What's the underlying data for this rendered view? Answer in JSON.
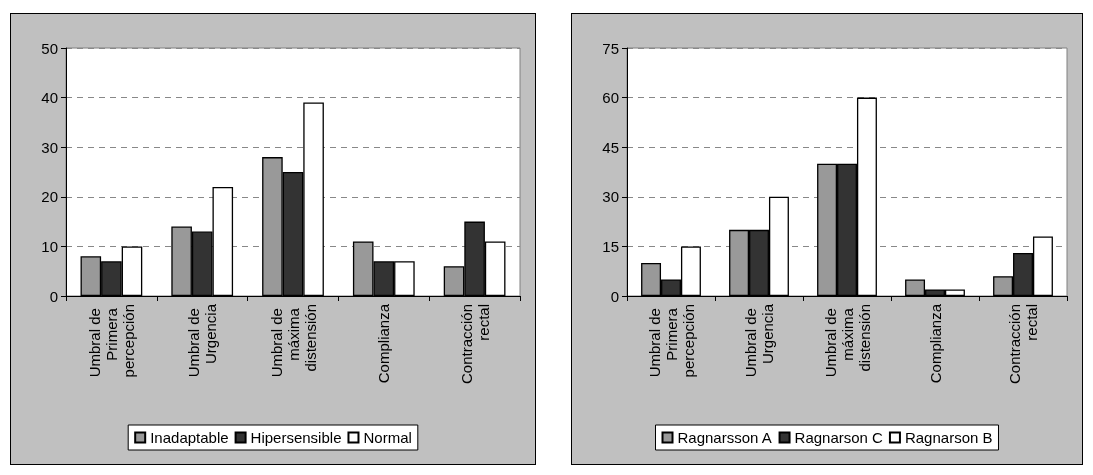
{
  "chart_data": [
    {
      "type": "bar",
      "categories": [
        "Umbral de Primera percepción",
        "Umbral de Urgencia",
        "Umbral de máxima distensión",
        "Complianza",
        "Contracción rectal"
      ],
      "series": [
        {
          "name": "Inadaptable",
          "color": "#999999",
          "values": [
            8,
            14,
            28,
            11,
            6
          ]
        },
        {
          "name": "Hipersensible",
          "color": "#333333",
          "values": [
            7,
            13,
            25,
            7,
            15
          ]
        },
        {
          "name": "Normal",
          "color": "#ffffff",
          "values": [
            10,
            22,
            39,
            7,
            11
          ]
        }
      ],
      "ylim": [
        0,
        50
      ],
      "yticks": [
        0,
        10,
        20,
        30,
        40,
        50
      ],
      "grid": "y",
      "legend": "bottom"
    },
    {
      "type": "bar",
      "categories": [
        "Umbral de Primera percepción",
        "Umbral de Urgencia",
        "Umbral de máxima distensión",
        "Complianza",
        "Contracción rectal"
      ],
      "series": [
        {
          "name": "Ragnarsson A",
          "color": "#999999",
          "values": [
            10,
            20,
            40,
            5,
            6
          ]
        },
        {
          "name": "Ragnarson C",
          "color": "#333333",
          "values": [
            5,
            20,
            40,
            2,
            13
          ]
        },
        {
          "name": "Ragnarson B",
          "color": "#ffffff",
          "values": [
            15,
            30,
            60,
            2,
            18
          ]
        }
      ],
      "ylim": [
        0,
        75
      ],
      "yticks": [
        0,
        15,
        30,
        45,
        60,
        75
      ],
      "grid": "y",
      "legend": "bottom"
    }
  ]
}
